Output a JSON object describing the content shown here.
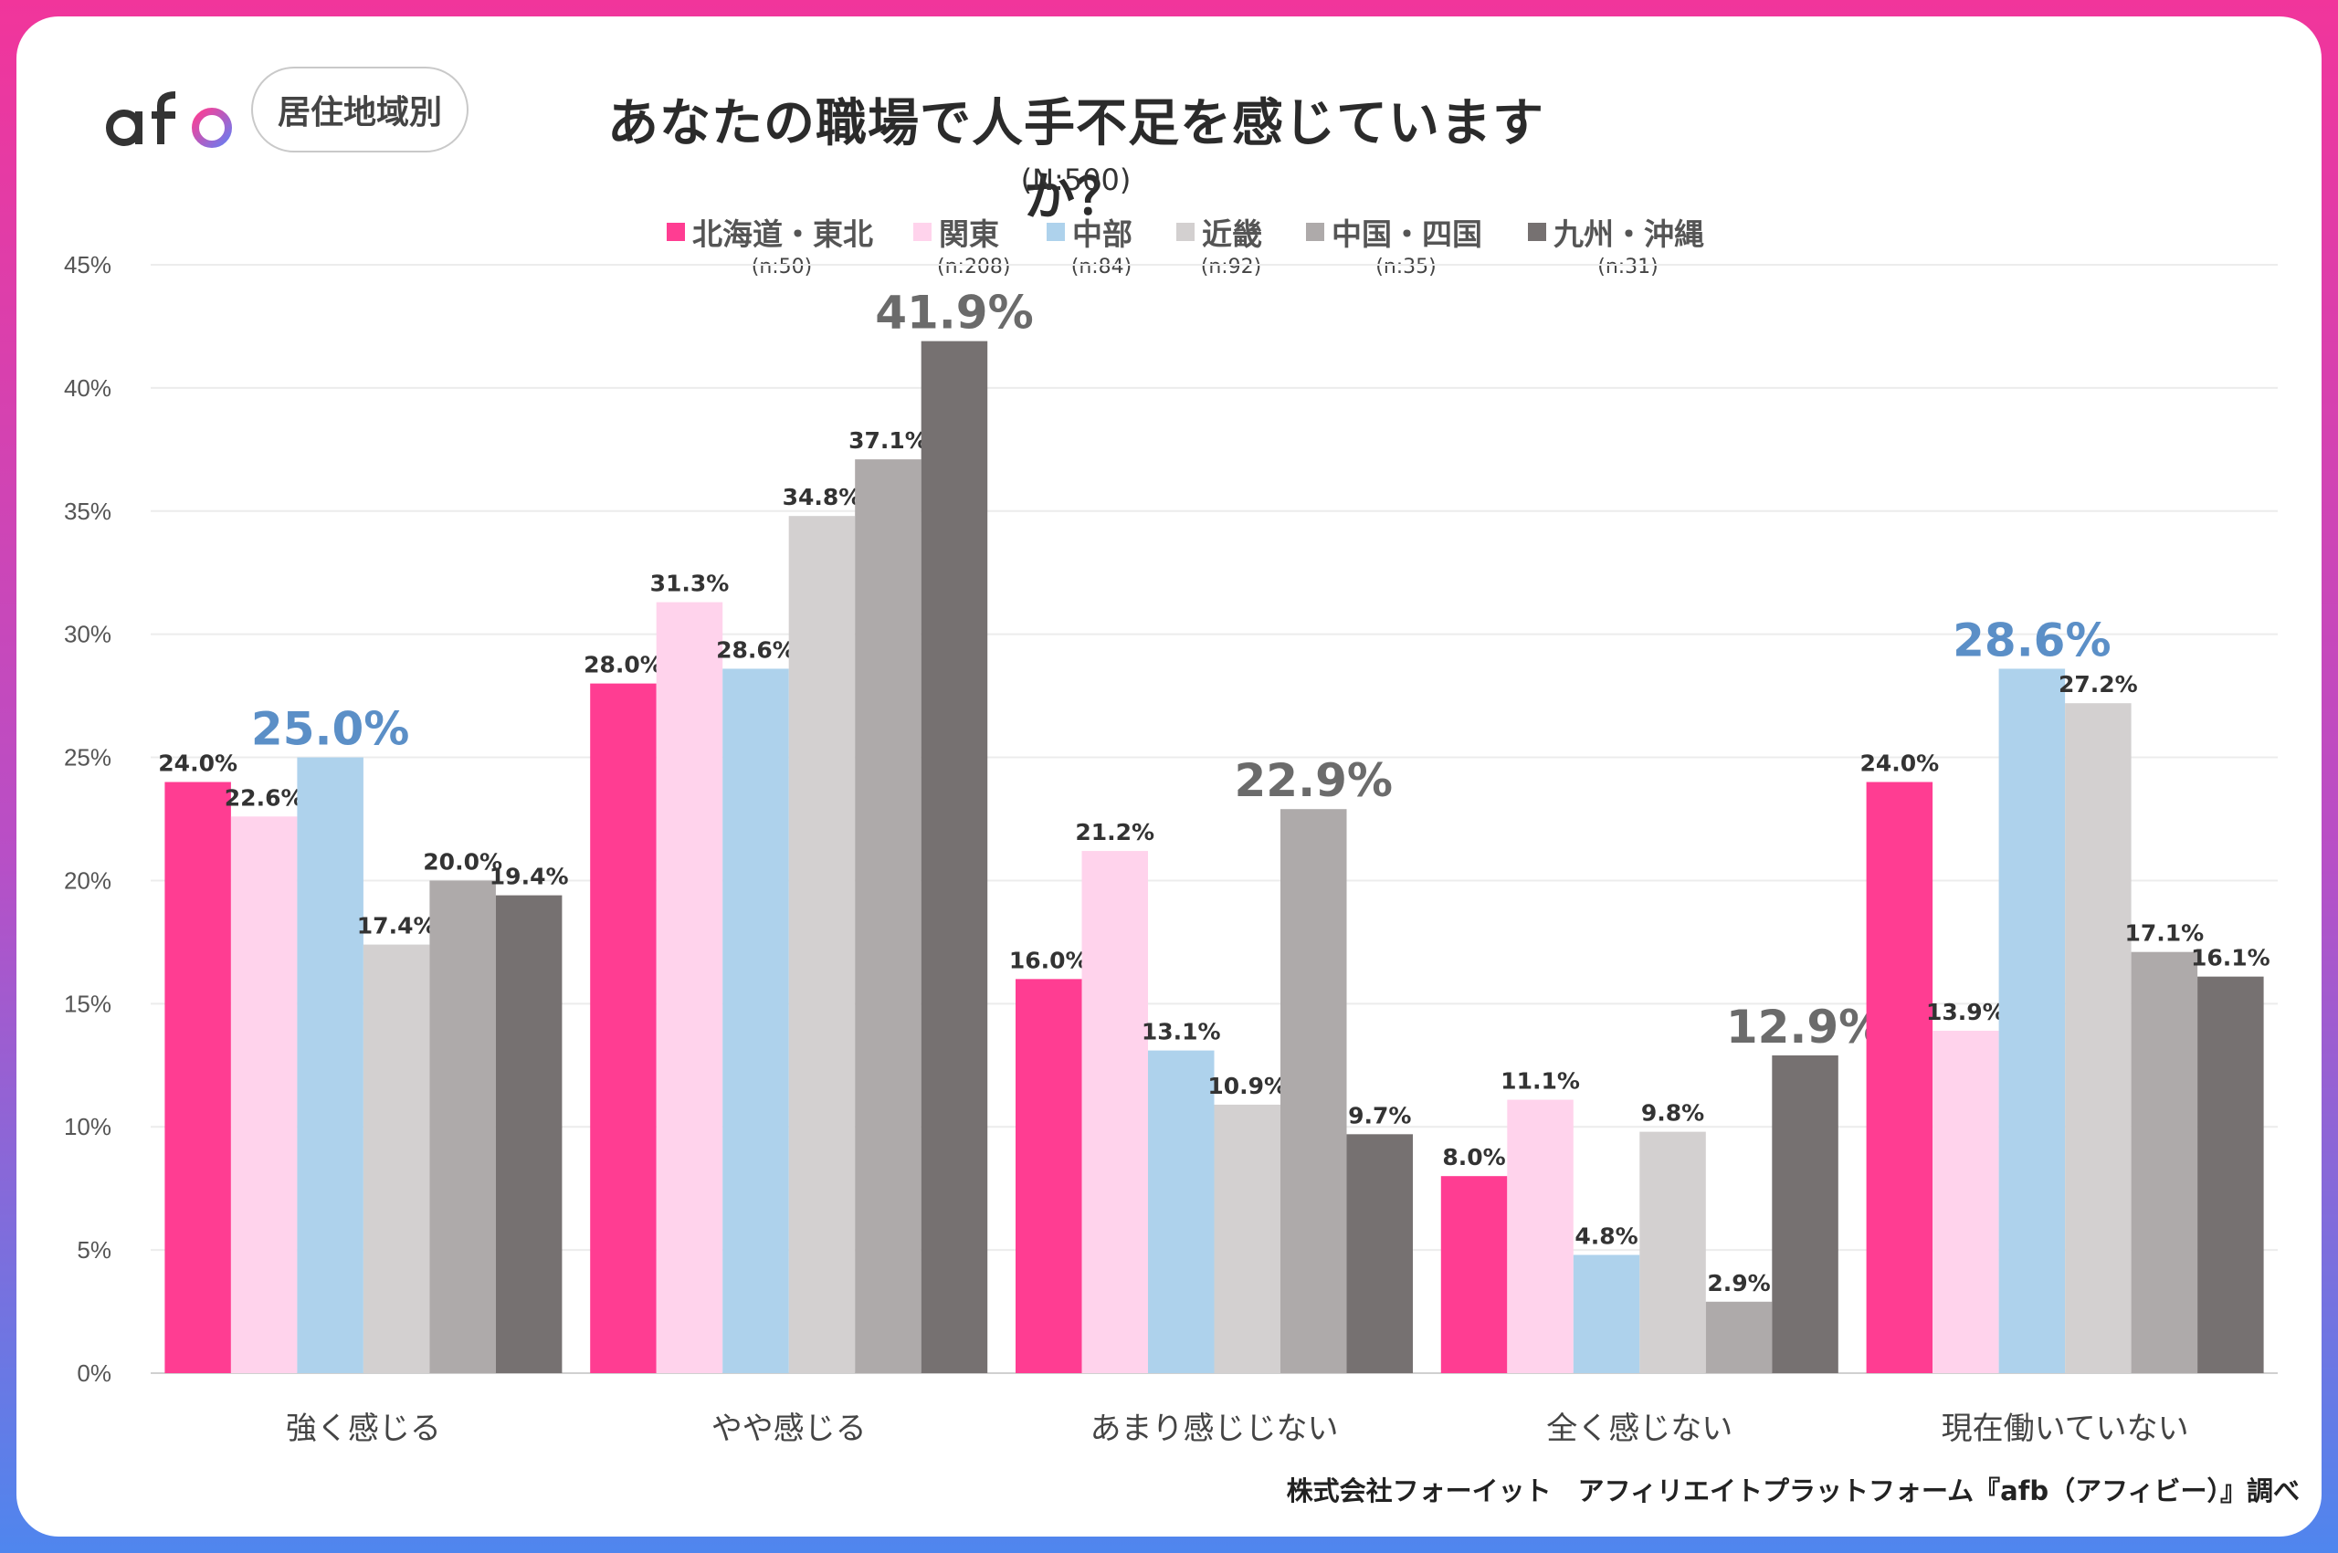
{
  "header": {
    "logo_text": "afb",
    "badge_label": "居住地域別",
    "title": "あなたの職場で人手不足を感じていますか？",
    "subtitle": "(N:500)"
  },
  "footer": {
    "credit": "株式会社フォーイット　アフィリエイトプラットフォーム『afb（アフィビー）』調べ"
  },
  "colors": {
    "hokkaido_tohoku": "#ff3d92",
    "kanto": "#ffd3ec",
    "chubu": "#aed2ec",
    "kinki": "#d3d0d0",
    "chugoku_shikoku": "#aeaaaa",
    "kyushu_okinawa": "#767171",
    "highlight_blue": "#5b8fc7",
    "highlight_gray": "#6b6b6b"
  },
  "chart_data": {
    "type": "bar",
    "title": "あなたの職場で人手不足を感じていますか？",
    "subtitle": "(N:500)",
    "categories": [
      "強く感じる",
      "やや感じる",
      "あまり感じじない",
      "全く感じない",
      "現在働いていない"
    ],
    "series": [
      {
        "name": "北海道・東北",
        "n_label": "(n:50)",
        "color": "#ff3d92",
        "values": [
          24.0,
          28.0,
          16.0,
          8.0,
          24.0
        ]
      },
      {
        "name": "関東",
        "n_label": "(n:208)",
        "color": "#ffd3ec",
        "values": [
          22.6,
          31.3,
          21.2,
          11.1,
          13.9
        ]
      },
      {
        "name": "中部",
        "n_label": "(n:84)",
        "color": "#aed2ec",
        "values": [
          25.0,
          28.6,
          13.1,
          4.8,
          28.6
        ]
      },
      {
        "name": "近畿",
        "n_label": "(n:92)",
        "color": "#d3d0d0",
        "values": [
          17.4,
          34.8,
          10.9,
          9.8,
          27.2
        ]
      },
      {
        "name": "中国・四国",
        "n_label": "(n:35)",
        "color": "#aeaaaa",
        "values": [
          20.0,
          37.1,
          22.9,
          2.9,
          17.1
        ]
      },
      {
        "name": "九州・沖縄",
        "n_label": "(n:31)",
        "color": "#767171",
        "values": [
          19.4,
          41.9,
          9.7,
          12.9,
          16.1
        ]
      }
    ],
    "value_labels": [
      [
        "24.0%",
        "28.0%",
        "16.0%",
        "8.0%",
        "24.0%"
      ],
      [
        "22.6%",
        "31.3%",
        "21.2%",
        "11.1%",
        "13.9%"
      ],
      [
        "25.0%",
        "28.6%",
        "13.1%",
        "4.8%",
        "28.6%"
      ],
      [
        "17.4%",
        "34.8%",
        "10.9%",
        "9.8%",
        "27.2%"
      ],
      [
        "20.0%",
        "37.1%",
        "22.9%",
        "2.9%",
        "17.1%"
      ],
      [
        "19.4%",
        "41.9%",
        "9.7%",
        "12.9%",
        "16.1%"
      ]
    ],
    "highlights": [
      {
        "series": 2,
        "category": 0,
        "color": "#5b8fc7"
      },
      {
        "series": 5,
        "category": 1,
        "color": "#6b6b6b"
      },
      {
        "series": 4,
        "category": 2,
        "color": "#6b6b6b"
      },
      {
        "series": 5,
        "category": 3,
        "color": "#6b6b6b"
      },
      {
        "series": 2,
        "category": 4,
        "color": "#5b8fc7"
      }
    ],
    "ylim": [
      0,
      45
    ],
    "yticks": [
      0,
      5,
      10,
      15,
      20,
      25,
      30,
      35,
      40,
      45
    ],
    "ytick_labels": [
      "0%",
      "5%",
      "10%",
      "15%",
      "20%",
      "25%",
      "30%",
      "35%",
      "40%",
      "45%"
    ],
    "grid": true,
    "legend": "top"
  }
}
